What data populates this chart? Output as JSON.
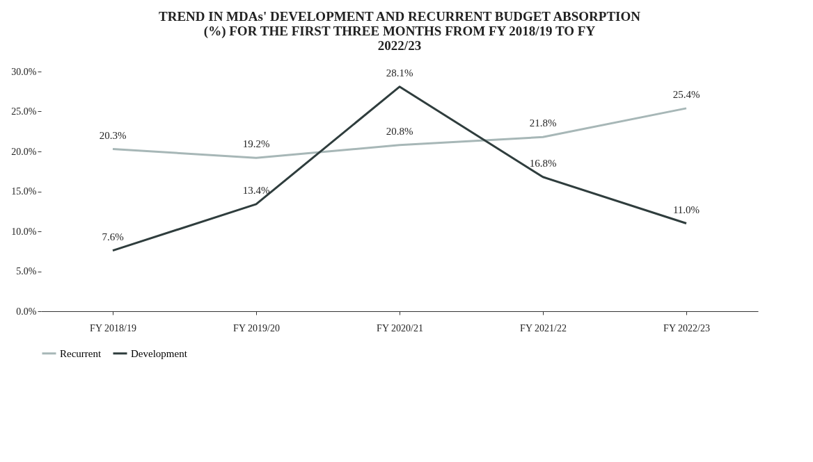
{
  "chart_data": {
    "type": "line",
    "title": "TREND IN MDAs' DEVELOPMENT AND RECURRENT BUDGET ABSORPTION (%) FOR THE FIRST THREE MONTHS FROM FY 2018/19 TO FY 2022/23",
    "categories": [
      "FY 2018/19",
      "FY 2019/20",
      "FY 2020/21",
      "FY 2021/22",
      "FY 2022/23"
    ],
    "series": [
      {
        "name": "Recurrent",
        "color": "#a7b7b7",
        "values": [
          20.3,
          19.2,
          20.8,
          21.8,
          25.4
        ],
        "value_labels": [
          "20.3%",
          "19.2%",
          "20.8%",
          "21.8%",
          "25.4%"
        ]
      },
      {
        "name": "Development",
        "color": "#2f3d3d",
        "values": [
          7.6,
          13.4,
          28.1,
          16.8,
          11.0
        ],
        "value_labels": [
          "7.6%",
          "13.4%",
          "28.1%",
          "16.8%",
          "11.0%"
        ]
      }
    ],
    "ylim": [
      0,
      30
    ],
    "yticks": [
      {
        "value": 0,
        "label": "0.0%"
      },
      {
        "value": 5,
        "label": "5.0%"
      },
      {
        "value": 10,
        "label": "10.0%"
      },
      {
        "value": 15,
        "label": "15.0%"
      },
      {
        "value": 20,
        "label": "20.0%"
      },
      {
        "value": 25,
        "label": "25.0%"
      },
      {
        "value": 30,
        "label": "30.0%"
      }
    ],
    "grid": false,
    "legend": "bottom"
  }
}
